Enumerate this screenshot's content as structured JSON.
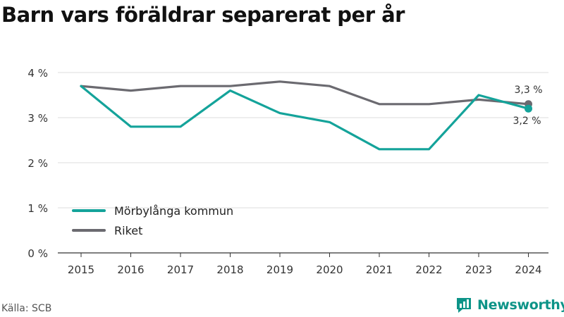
{
  "title": "Barn vars föräldrar separerat per år",
  "source": "Källa: SCB",
  "brand": {
    "name": "Newsworthy",
    "icon": "newsworthy-logo-icon",
    "color": "#0d9488"
  },
  "chart_data": {
    "type": "line",
    "categories": [
      "2015",
      "2016",
      "2017",
      "2018",
      "2019",
      "2020",
      "2021",
      "2022",
      "2023",
      "2024"
    ],
    "ylim": [
      0,
      4
    ],
    "yticks": [
      0,
      1,
      2,
      3,
      4
    ],
    "ytick_labels": [
      "0 %",
      "1 %",
      "2 %",
      "3 %",
      "4 %"
    ],
    "grid": true,
    "legend_position": "bottom-left",
    "series": [
      {
        "name": "Mörbylånga kommun",
        "color": "#14a39a",
        "values": [
          3.7,
          2.8,
          2.8,
          3.6,
          3.1,
          2.9,
          2.3,
          2.3,
          3.5,
          3.2
        ],
        "end_label": "3,2 %"
      },
      {
        "name": "Riket",
        "color": "#6b6a70",
        "values": [
          3.7,
          3.6,
          3.7,
          3.7,
          3.8,
          3.7,
          3.3,
          3.3,
          3.4,
          3.3
        ],
        "end_label": "3,3 %"
      }
    ]
  }
}
